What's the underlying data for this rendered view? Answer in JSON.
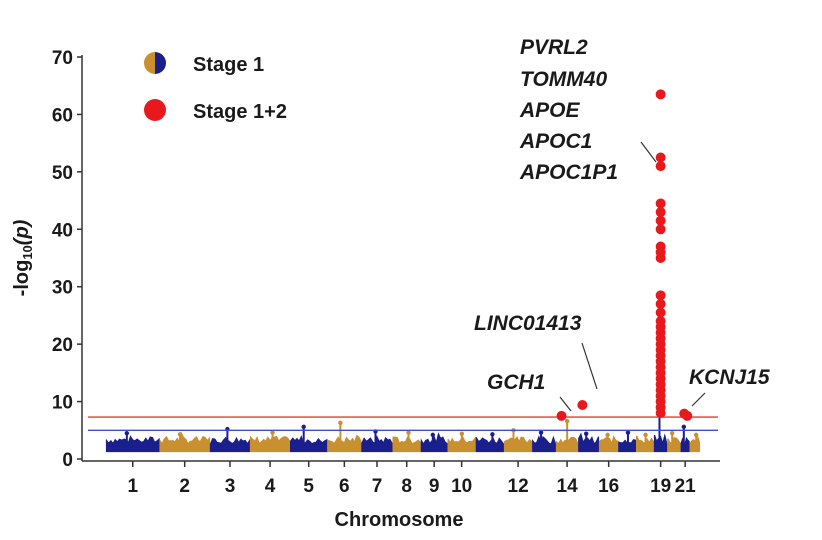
{
  "chart_data": {
    "type": "scatter",
    "subtype": "manhattan",
    "title": "",
    "xlabel": "Chromosome",
    "ylabel_main": "-log",
    "ylabel_sub": "10",
    "ylabel_paren": "(p)",
    "ylim": [
      0,
      70
    ],
    "yticks": [
      0,
      10,
      20,
      30,
      40,
      50,
      60,
      70
    ],
    "xtick_labels": [
      "1",
      "2",
      "3",
      "4",
      "5",
      "6",
      "7",
      "8",
      "9",
      "10",
      "12",
      "14",
      "16",
      "19",
      "21"
    ],
    "chromosomes": [
      "1",
      "2",
      "3",
      "4",
      "5",
      "6",
      "7",
      "8",
      "9",
      "10",
      "11",
      "12",
      "13",
      "14",
      "15",
      "16",
      "17",
      "18",
      "19",
      "20",
      "21",
      "22"
    ],
    "chromosome_colors": [
      "#1a1f8c",
      "#c8902e"
    ],
    "thresholds": [
      {
        "value": 7.3,
        "color": "#d9412f"
      },
      {
        "value": 5.0,
        "color": "#3a4fd6"
      }
    ],
    "legend": {
      "placement": "top-left",
      "entries": [
        {
          "label": "Stage 1",
          "marker": "split-circle",
          "colors": [
            "#c8902e",
            "#1a1f8c"
          ]
        },
        {
          "label": "Stage 1+2",
          "marker": "circle",
          "colors": [
            "#e8191c"
          ]
        }
      ]
    },
    "stage1_peaks": [
      {
        "chr": "1",
        "value": 4.5
      },
      {
        "chr": "2",
        "value": 4.3
      },
      {
        "chr": "3",
        "value": 5.2
      },
      {
        "chr": "4",
        "value": 4.6
      },
      {
        "chr": "5",
        "value": 5.6
      },
      {
        "chr": "6",
        "value": 6.3
      },
      {
        "chr": "7",
        "value": 4.8
      },
      {
        "chr": "8",
        "value": 4.6
      },
      {
        "chr": "9",
        "value": 4.2
      },
      {
        "chr": "10",
        "value": 4.4
      },
      {
        "chr": "11",
        "value": 4.3
      },
      {
        "chr": "12",
        "value": 5.0
      },
      {
        "chr": "13",
        "value": 4.6
      },
      {
        "chr": "14",
        "value": 6.6
      },
      {
        "chr": "15",
        "value": 4.4
      },
      {
        "chr": "16",
        "value": 4.2
      },
      {
        "chr": "17",
        "value": 4.6
      },
      {
        "chr": "18",
        "value": 4.2
      },
      {
        "chr": "19",
        "value": 11.0
      },
      {
        "chr": "20",
        "value": 4.5
      },
      {
        "chr": "21",
        "value": 5.6
      },
      {
        "chr": "22",
        "value": 4.2
      }
    ],
    "stage12_points": [
      {
        "chr": "14",
        "value": 7.5
      },
      {
        "chr": "15",
        "value": 9.4
      },
      {
        "chr": "19",
        "value": 63.5
      },
      {
        "chr": "19",
        "value": 52.5
      },
      {
        "chr": "19",
        "value": 51.0
      },
      {
        "chr": "19",
        "value": 44.5
      },
      {
        "chr": "19",
        "value": 43.0
      },
      {
        "chr": "19",
        "value": 41.5
      },
      {
        "chr": "19",
        "value": 40.0
      },
      {
        "chr": "19",
        "value": 37.0
      },
      {
        "chr": "19",
        "value": 36.0
      },
      {
        "chr": "19",
        "value": 35.0
      },
      {
        "chr": "19",
        "value": 28.5
      },
      {
        "chr": "19",
        "value": 27.0
      },
      {
        "chr": "19",
        "value": 25.5
      },
      {
        "chr": "19",
        "value": 24.0
      },
      {
        "chr": "19",
        "value": 23.0
      },
      {
        "chr": "19",
        "value": 22.0
      },
      {
        "chr": "19",
        "value": 21.0
      },
      {
        "chr": "19",
        "value": 20.0
      },
      {
        "chr": "19",
        "value": 19.0
      },
      {
        "chr": "19",
        "value": 18.0
      },
      {
        "chr": "19",
        "value": 17.0
      },
      {
        "chr": "19",
        "value": 16.0
      },
      {
        "chr": "19",
        "value": 15.0
      },
      {
        "chr": "19",
        "value": 14.0
      },
      {
        "chr": "19",
        "value": 13.0
      },
      {
        "chr": "19",
        "value": 12.0
      },
      {
        "chr": "19",
        "value": 11.0
      },
      {
        "chr": "19",
        "value": 10.0
      },
      {
        "chr": "19",
        "value": 9.0
      },
      {
        "chr": "19",
        "value": 8.0
      },
      {
        "chr": "21",
        "value": 7.9
      },
      {
        "chr": "21",
        "value": 7.5
      }
    ],
    "annotations": [
      {
        "genes": [
          "PVRL2",
          "TOMM40",
          "APOE",
          "APOC1",
          "APOC1P1"
        ],
        "chr": "19"
      },
      {
        "genes": [
          "LINC01413"
        ],
        "chr": "15"
      },
      {
        "genes": [
          "GCH1"
        ],
        "chr": "14"
      },
      {
        "genes": [
          "KCNJ15"
        ],
        "chr": "21"
      }
    ]
  }
}
